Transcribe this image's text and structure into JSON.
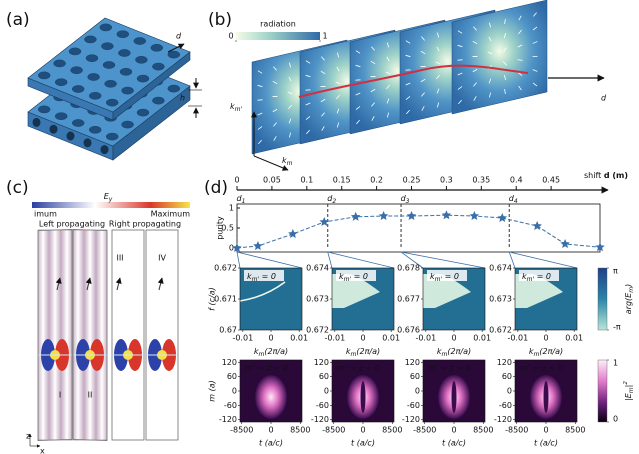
{
  "panel_a": {
    "label": "(a)",
    "d": "d",
    "h": "h"
  },
  "panel_b": {
    "label": "(b)",
    "colorbar": {
      "title": "radiation",
      "lim": [
        0,
        1
      ],
      "ticks": [
        0,
        1
      ]
    },
    "axis_vertical": [
      {
        "t": "k"
      },
      {
        "sub": "m'"
      }
    ],
    "axis_horizontal": [
      {
        "t": "k"
      },
      {
        "sub": "m"
      }
    ],
    "axis_depth": "d"
  },
  "panel_c": {
    "label": "(c)",
    "colorbar": {
      "min_label": "imum",
      "title": [
        {
          "t": "E"
        },
        {
          "sub": "y"
        }
      ],
      "max_label": "Maximum"
    },
    "left_title": "Left propagating",
    "right_title": "Right propagating",
    "strips": [
      "I",
      "II",
      "III",
      "IV"
    ],
    "axes": {
      "z": "z",
      "x": "x"
    }
  },
  "panel_d": {
    "label": "(d)",
    "shift_axis": {
      "label": [
        {
          "t": "shift "
        },
        {
          "b": "d"
        },
        {
          "b": " (m)"
        }
      ],
      "xlim": [
        0,
        0.52
      ],
      "xticks": [
        0,
        0.05,
        0.1,
        0.15,
        0.2,
        0.25,
        0.3,
        0.35,
        0.4,
        0.45
      ]
    },
    "purity": {
      "type": "line",
      "ylabel": "purity",
      "color": "#3a6ea8",
      "x": [
        0,
        0.03,
        0.08,
        0.125,
        0.17,
        0.21,
        0.25,
        0.3,
        0.34,
        0.38,
        0.43,
        0.47,
        0.52
      ],
      "values": [
        0,
        0.05,
        0.35,
        0.65,
        0.78,
        0.8,
        0.8,
        0.82,
        0.8,
        0.75,
        0.55,
        0.1,
        0.02
      ],
      "ylim": [
        0,
        1
      ],
      "yticks": [
        0,
        0.5,
        1
      ],
      "markers": [
        {
          "label": [
            {
              "t": "d"
            },
            {
              "sub": "1"
            }
          ],
          "x": 0
        },
        {
          "label": [
            {
              "t": "d"
            },
            {
              "sub": "2"
            }
          ],
          "x": 0.13
        },
        {
          "label": [
            {
              "t": "d"
            },
            {
              "sub": "3"
            }
          ],
          "x": 0.235
        },
        {
          "label": [
            {
              "t": "d"
            },
            {
              "sub": "4"
            }
          ],
          "x": 0.39
        }
      ]
    },
    "band_plots": [
      {
        "inset": [
          {
            "t": "k"
          },
          {
            "sub": "m'"
          },
          {
            "t": " = 0"
          }
        ],
        "ylabel": "f (c/a)",
        "xlabel": [
          {
            "t": "k"
          },
          {
            "sub": "m"
          },
          {
            "t": "(2π/a)"
          }
        ],
        "ylim": [
          0.67,
          0.672
        ],
        "yticks": [
          0.672,
          0.671,
          0.67
        ],
        "xlim": [
          -0.011,
          0.011
        ],
        "xticks": [
          -0.01,
          0,
          0.01
        ]
      },
      {
        "inset": [
          {
            "t": "k"
          },
          {
            "sub": "m'"
          },
          {
            "t": " = 0"
          }
        ],
        "xlabel": [
          {
            "t": "k"
          },
          {
            "sub": "m"
          },
          {
            "t": "(2π/a)"
          }
        ],
        "ylim": [
          0.672,
          0.674
        ],
        "yticks": [
          0.674,
          0.673,
          0.672
        ],
        "xlim": [
          -0.011,
          0.011
        ],
        "xticks": [
          -0.01,
          0,
          0.01
        ]
      },
      {
        "inset": [
          {
            "t": "k"
          },
          {
            "sub": "m'"
          },
          {
            "t": " = 0"
          }
        ],
        "xlabel": [
          {
            "t": "k"
          },
          {
            "sub": "m"
          },
          {
            "t": "(2π/a)"
          }
        ],
        "ylim": [
          0.676,
          0.678
        ],
        "yticks": [
          0.678,
          0.677,
          0.676
        ],
        "xlim": [
          -0.011,
          0.011
        ],
        "xticks": [
          -0.01,
          0,
          0.01
        ]
      },
      {
        "inset": [
          {
            "t": "k"
          },
          {
            "sub": "m'"
          },
          {
            "t": " = 0"
          }
        ],
        "xlabel": [
          {
            "t": "k"
          },
          {
            "sub": "m"
          },
          {
            "t": "(2π/a)"
          }
        ],
        "ylim": [
          0.672,
          0.674
        ],
        "yticks": [
          0.674,
          0.673,
          0.672
        ],
        "xlim": [
          -0.011,
          0.011
        ],
        "xticks": [
          -0.01,
          0,
          0.01
        ]
      }
    ],
    "band_colorbar": {
      "title": [
        {
          "t": "arg(E"
        },
        {
          "sub": "m"
        },
        {
          "t": ")"
        }
      ],
      "lim": [
        -3.14159,
        3.14159
      ],
      "ticks": [
        {
          "value": 3.14159,
          "label": "π"
        },
        {
          "value": -3.14159,
          "label": "-π"
        }
      ]
    },
    "mode_plots": [
      {
        "inset": "m' = z = 0",
        "ylabel": "m (a)",
        "xlabel": "t (a/c)",
        "ylim": [
          -130,
          130
        ],
        "yticks": [
          120,
          60,
          0,
          -60,
          -120
        ],
        "xlim": [
          -9000,
          9000
        ],
        "xticks": [
          -8500,
          0,
          8500
        ]
      },
      {
        "inset": "m' = z = 0",
        "xlabel": "t (a/c)",
        "ylim": [
          -130,
          130
        ],
        "yticks": [
          120,
          60,
          0,
          -60,
          -120
        ],
        "xlim": [
          -9000,
          9000
        ],
        "xticks": [
          -8500,
          0,
          8500
        ]
      },
      {
        "inset": "m' = z = 0",
        "xlabel": "t (a/c)",
        "ylim": [
          -130,
          130
        ],
        "yticks": [
          120,
          60,
          0,
          -60,
          -120
        ],
        "xlim": [
          -9000,
          9000
        ],
        "xticks": [
          -8500,
          0,
          8500
        ]
      },
      {
        "inset": "m' = z = 0",
        "xlabel": "t (a/c)",
        "ylim": [
          -130,
          130
        ],
        "yticks": [
          120,
          60,
          0,
          -60,
          -120
        ],
        "xlim": [
          -9000,
          9000
        ],
        "xticks": [
          -8500,
          0,
          8500
        ]
      }
    ],
    "mode_colorbar": {
      "title": [
        {
          "t": "|E"
        },
        {
          "sub": "m"
        },
        {
          "t": "|"
        },
        {
          "sup": "2"
        }
      ],
      "lim": [
        0,
        1
      ],
      "ticks": [
        1,
        0
      ]
    }
  }
}
